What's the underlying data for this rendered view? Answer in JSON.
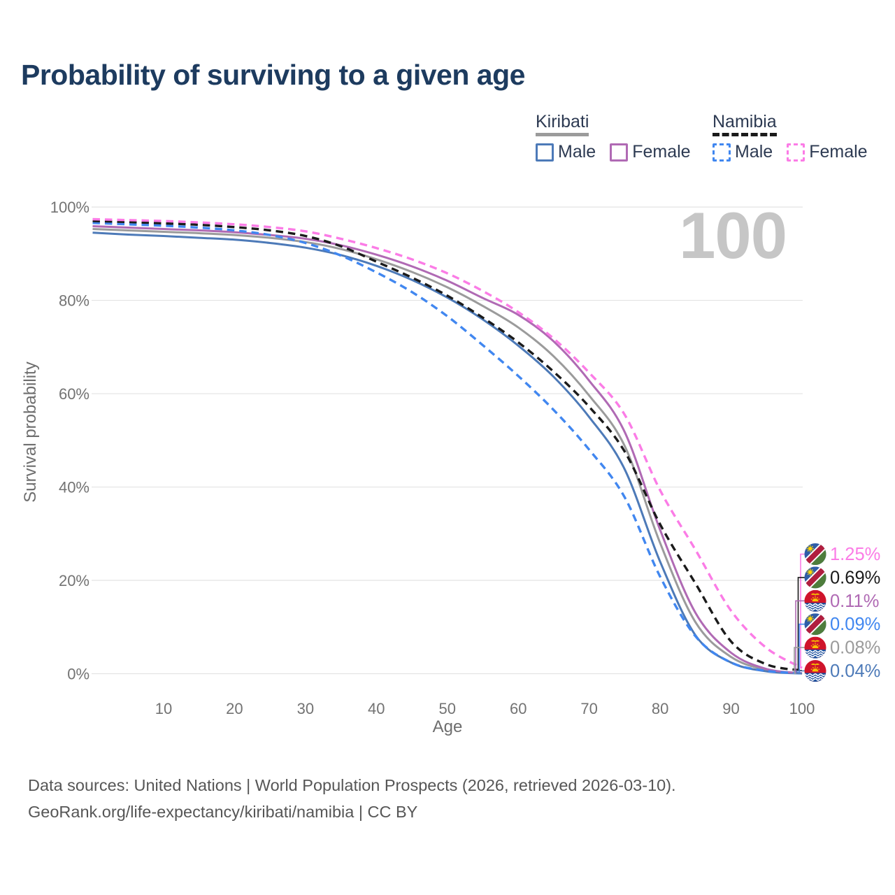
{
  "title": "Probability of surviving to a given age",
  "age_indicator": "100",
  "legend": {
    "groups": [
      {
        "name": "Kiribati",
        "line_color": "#9b9b9b",
        "line_dashed": false,
        "items": [
          {
            "label": "Male",
            "color": "#4d7ab8",
            "dashed": false
          },
          {
            "label": "Female",
            "color": "#b06ab4",
            "dashed": false
          }
        ]
      },
      {
        "name": "Namibia",
        "line_color": "#1b1b1b",
        "line_dashed": true,
        "items": [
          {
            "label": "Male",
            "color": "#4187f0",
            "dashed": true
          },
          {
            "label": "Female",
            "color": "#fb7ce6",
            "dashed": true
          }
        ]
      }
    ]
  },
  "chart_data": {
    "type": "line",
    "title": "Probability of surviving to a given age",
    "xlabel": "Age",
    "ylabel": "Survival probability",
    "xlim": [
      0,
      100
    ],
    "ylim": [
      0,
      100
    ],
    "grid": true,
    "legend_position": "top-right",
    "x_ticks": [
      10,
      20,
      30,
      40,
      50,
      60,
      70,
      80,
      90,
      100
    ],
    "y_tick_values": [
      0,
      20,
      40,
      60,
      80,
      100
    ],
    "y_tick_labels": [
      "0%",
      "20%",
      "40%",
      "60%",
      "80%",
      "100%"
    ],
    "x": [
      0,
      5,
      10,
      15,
      20,
      25,
      30,
      35,
      40,
      45,
      50,
      55,
      60,
      65,
      70,
      75,
      80,
      85,
      90,
      95,
      100
    ],
    "series": [
      {
        "name": "Kiribati",
        "country": "Kiribati",
        "sex": "Both",
        "flag": "kiribati",
        "color": "#9b9b9b",
        "dashed": false,
        "end_label": "0.08%",
        "values": [
          95.3,
          95.0,
          94.7,
          94.4,
          94.0,
          93.4,
          92.5,
          91.0,
          88.8,
          86.1,
          82.8,
          78.8,
          74.2,
          68.0,
          59.6,
          48.8,
          28.0,
          11.0,
          3.6,
          0.8,
          0.08
        ]
      },
      {
        "name": "Kiribati Male",
        "country": "Kiribati",
        "sex": "Male",
        "flag": "kiribati",
        "color": "#4d7ab8",
        "dashed": false,
        "end_label": "0.04%",
        "values": [
          94.5,
          94.1,
          93.8,
          93.4,
          93.0,
          92.3,
          91.3,
          89.7,
          87.4,
          84.4,
          80.6,
          75.9,
          70.3,
          63.6,
          55.0,
          43.8,
          24.0,
          8.2,
          2.4,
          0.5,
          0.04
        ]
      },
      {
        "name": "Kiribati Female",
        "country": "Kiribati",
        "sex": "Female",
        "flag": "kiribati",
        "color": "#b06ab4",
        "dashed": false,
        "end_label": "0.11%",
        "values": [
          95.9,
          95.6,
          95.3,
          95.0,
          94.6,
          94.0,
          93.2,
          91.8,
          89.8,
          87.3,
          84.2,
          80.5,
          76.9,
          71.2,
          62.8,
          51.8,
          30.8,
          13.0,
          4.5,
          1.0,
          0.11
        ]
      },
      {
        "name": "Namibia Male",
        "country": "Namibia",
        "sex": "Male",
        "flag": "namibia",
        "color": "#4187f0",
        "dashed": true,
        "end_label": "0.09%",
        "values": [
          96.6,
          96.3,
          96.0,
          95.6,
          95.0,
          94.0,
          92.3,
          89.6,
          86.0,
          81.8,
          76.6,
          70.4,
          63.8,
          56.5,
          48.0,
          37.8,
          20.8,
          8.0,
          2.4,
          0.6,
          0.09
        ]
      },
      {
        "name": "Namibia",
        "country": "Namibia",
        "sex": "Both",
        "flag": "namibia",
        "color": "#1b1b1b",
        "dashed": true,
        "end_label": "0.69%",
        "values": [
          97.0,
          96.8,
          96.5,
          96.2,
          95.7,
          95.0,
          93.8,
          91.6,
          88.3,
          84.9,
          81.0,
          76.3,
          71.0,
          64.7,
          57.2,
          47.6,
          32.0,
          19.3,
          6.9,
          2.0,
          0.69
        ]
      },
      {
        "name": "Namibia Female",
        "country": "Namibia",
        "sex": "Female",
        "flag": "namibia",
        "color": "#fb7ce6",
        "dashed": true,
        "end_label": "1.25%",
        "values": [
          97.4,
          97.2,
          97.0,
          96.7,
          96.3,
          95.7,
          94.8,
          93.2,
          91.2,
          88.8,
          85.8,
          82.0,
          77.5,
          71.8,
          64.5,
          55.5,
          39.3,
          26.5,
          13.5,
          5.5,
          1.25
        ]
      }
    ]
  },
  "footer": {
    "line1": "Data sources: United Nations | World Population Prospects (2026, retrieved 2026-03-10).",
    "line2": "GeoRank.org/life-expectancy/kiribati/namibia | CC BY"
  }
}
